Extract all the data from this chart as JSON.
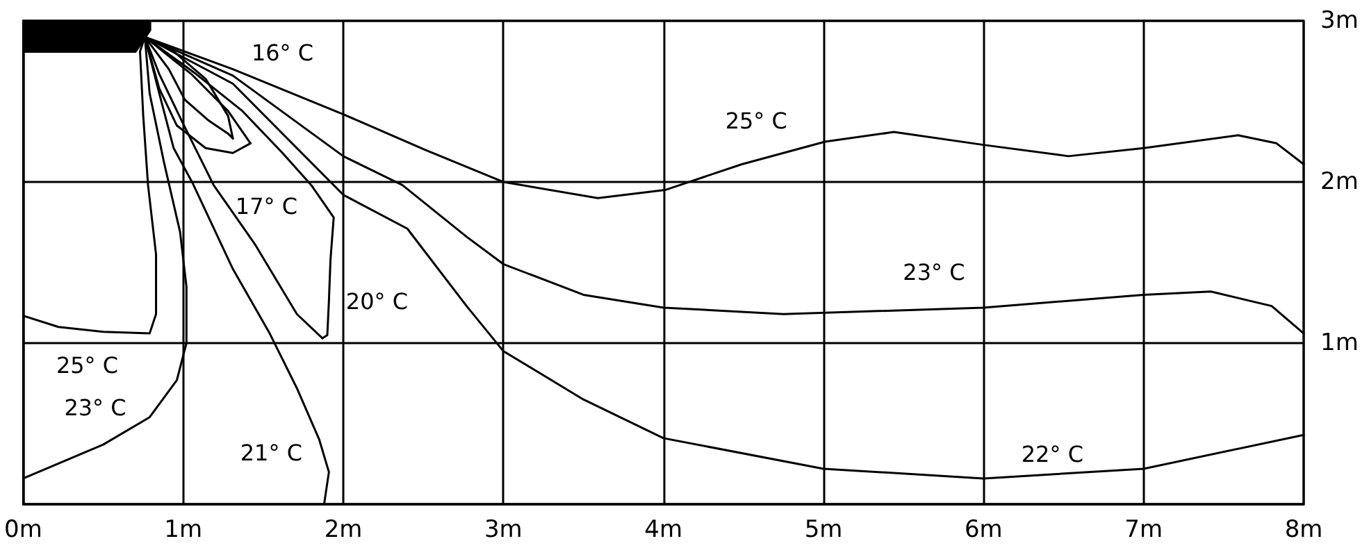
{
  "chart_data": {
    "type": "line",
    "xlim": [
      0,
      8
    ],
    "ylim": [
      0,
      3
    ],
    "xticks": [
      {
        "value": 0,
        "label": "0m"
      },
      {
        "value": 1,
        "label": "1m"
      },
      {
        "value": 2,
        "label": "2m"
      },
      {
        "value": 3,
        "label": "3m"
      },
      {
        "value": 4,
        "label": "4m"
      },
      {
        "value": 5,
        "label": "5m"
      },
      {
        "value": 6,
        "label": "6m"
      },
      {
        "value": 7,
        "label": "7m"
      },
      {
        "value": 8,
        "label": "8m"
      }
    ],
    "yticks": [
      {
        "value": 0,
        "label": null
      },
      {
        "value": 1,
        "label": "1m"
      },
      {
        "value": 2,
        "label": "2m"
      },
      {
        "value": 3,
        "label": "3m"
      }
    ],
    "grid": true,
    "marker": "none",
    "line_style": "solid",
    "series": [
      {
        "color": "#000000",
        "x": [
          0.76,
          0.94,
          1.14,
          1.28,
          1.31
        ],
        "values": [
          2.9,
          2.81,
          2.64,
          2.41,
          2.27
        ]
      },
      {
        "color": "#000000",
        "x": [
          0.76,
          0.91,
          1.01,
          1.16,
          1.28,
          1.31
        ],
        "values": [
          2.9,
          2.7,
          2.51,
          2.38,
          2.3,
          2.27
        ]
      },
      {
        "color": "#000000",
        "x": [
          0.76,
          1.05,
          1.28,
          1.42
        ],
        "values": [
          2.9,
          2.67,
          2.44,
          2.24
        ]
      },
      {
        "color": "#000000",
        "x": [
          0.76,
          0.85,
          0.96,
          1.14,
          1.31,
          1.42
        ],
        "values": [
          2.9,
          2.58,
          2.35,
          2.21,
          2.18,
          2.24
        ]
      },
      {
        "color": "#000000",
        "x": [
          0.76,
          1.08,
          1.37,
          1.62,
          1.8,
          1.94,
          1.92,
          1.91,
          1.9,
          1.87
        ],
        "values": [
          2.9,
          2.67,
          2.44,
          2.18,
          1.98,
          1.78,
          1.52,
          1.26,
          1.05,
          1.03
        ]
      },
      {
        "color": "#000000",
        "x": [
          0.76,
          0.85,
          0.99,
          1.19,
          1.45,
          1.71,
          1.87
        ],
        "values": [
          2.9,
          2.67,
          2.38,
          1.98,
          1.61,
          1.18,
          1.03
        ]
      },
      {
        "color": "#000000",
        "x": [
          0.76,
          0.85,
          0.94,
          1.06,
          1.31,
          1.54,
          1.71,
          1.85,
          1.91,
          1.88
        ],
        "values": [
          2.9,
          2.55,
          2.21,
          1.99,
          1.46,
          1.06,
          0.72,
          0.4,
          0.2,
          0
        ]
      },
      {
        "color": "#000000",
        "x": [
          0.76,
          0.79,
          0.88,
          0.98,
          1.02,
          1.02,
          0.96,
          0.79,
          0.5,
          0
        ],
        "values": [
          2.9,
          2.55,
          2.12,
          1.69,
          1.35,
          1,
          0.77,
          0.54,
          0.37,
          0.16
        ]
      },
      {
        "color": "#000000",
        "x": [
          0.76,
          0.73,
          0.75,
          0.78,
          0.83,
          0.83,
          0.79,
          0.5,
          0.22,
          0
        ],
        "values": [
          2.9,
          2.81,
          2.41,
          1.98,
          1.55,
          1.18,
          1.06,
          1.07,
          1.1,
          1.17
        ]
      },
      {
        "color": "#000000",
        "x": [
          0.76,
          1.31,
          2,
          2.51,
          3,
          3.59,
          4.01,
          4.49,
          5.01,
          5.44,
          6,
          6.53,
          7,
          7.59,
          7.83,
          8
        ],
        "values": [
          2.9,
          2.7,
          2.42,
          2.2,
          2,
          1.9,
          1.95,
          2.11,
          2.25,
          2.31,
          2.23,
          2.16,
          2.21,
          2.29,
          2.24,
          2.11
        ]
      },
      {
        "color": "#000000",
        "x": [
          0.76,
          1.31,
          2,
          2.37,
          2.77,
          3,
          3.5,
          4,
          4.75,
          6,
          7,
          7.42,
          7.8,
          8
        ],
        "values": [
          2.9,
          2.66,
          2.16,
          1.98,
          1.66,
          1.49,
          1.3,
          1.22,
          1.18,
          1.22,
          1.3,
          1.32,
          1.23,
          1.06
        ]
      },
      {
        "color": "#000000",
        "x": [
          0.76,
          1.31,
          2,
          2.4,
          2.77,
          3,
          3.5,
          4,
          5,
          6,
          7,
          8
        ],
        "values": [
          2.9,
          2.61,
          1.92,
          1.71,
          1.23,
          0.95,
          0.65,
          0.41,
          0.22,
          0.16,
          0.22,
          0.43
        ]
      }
    ],
    "annotations": [
      "16° C",
      "17° C",
      "20° C",
      "25° C",
      "23° C",
      "21° C",
      "25° C",
      "23° C",
      "22° C"
    ]
  }
}
